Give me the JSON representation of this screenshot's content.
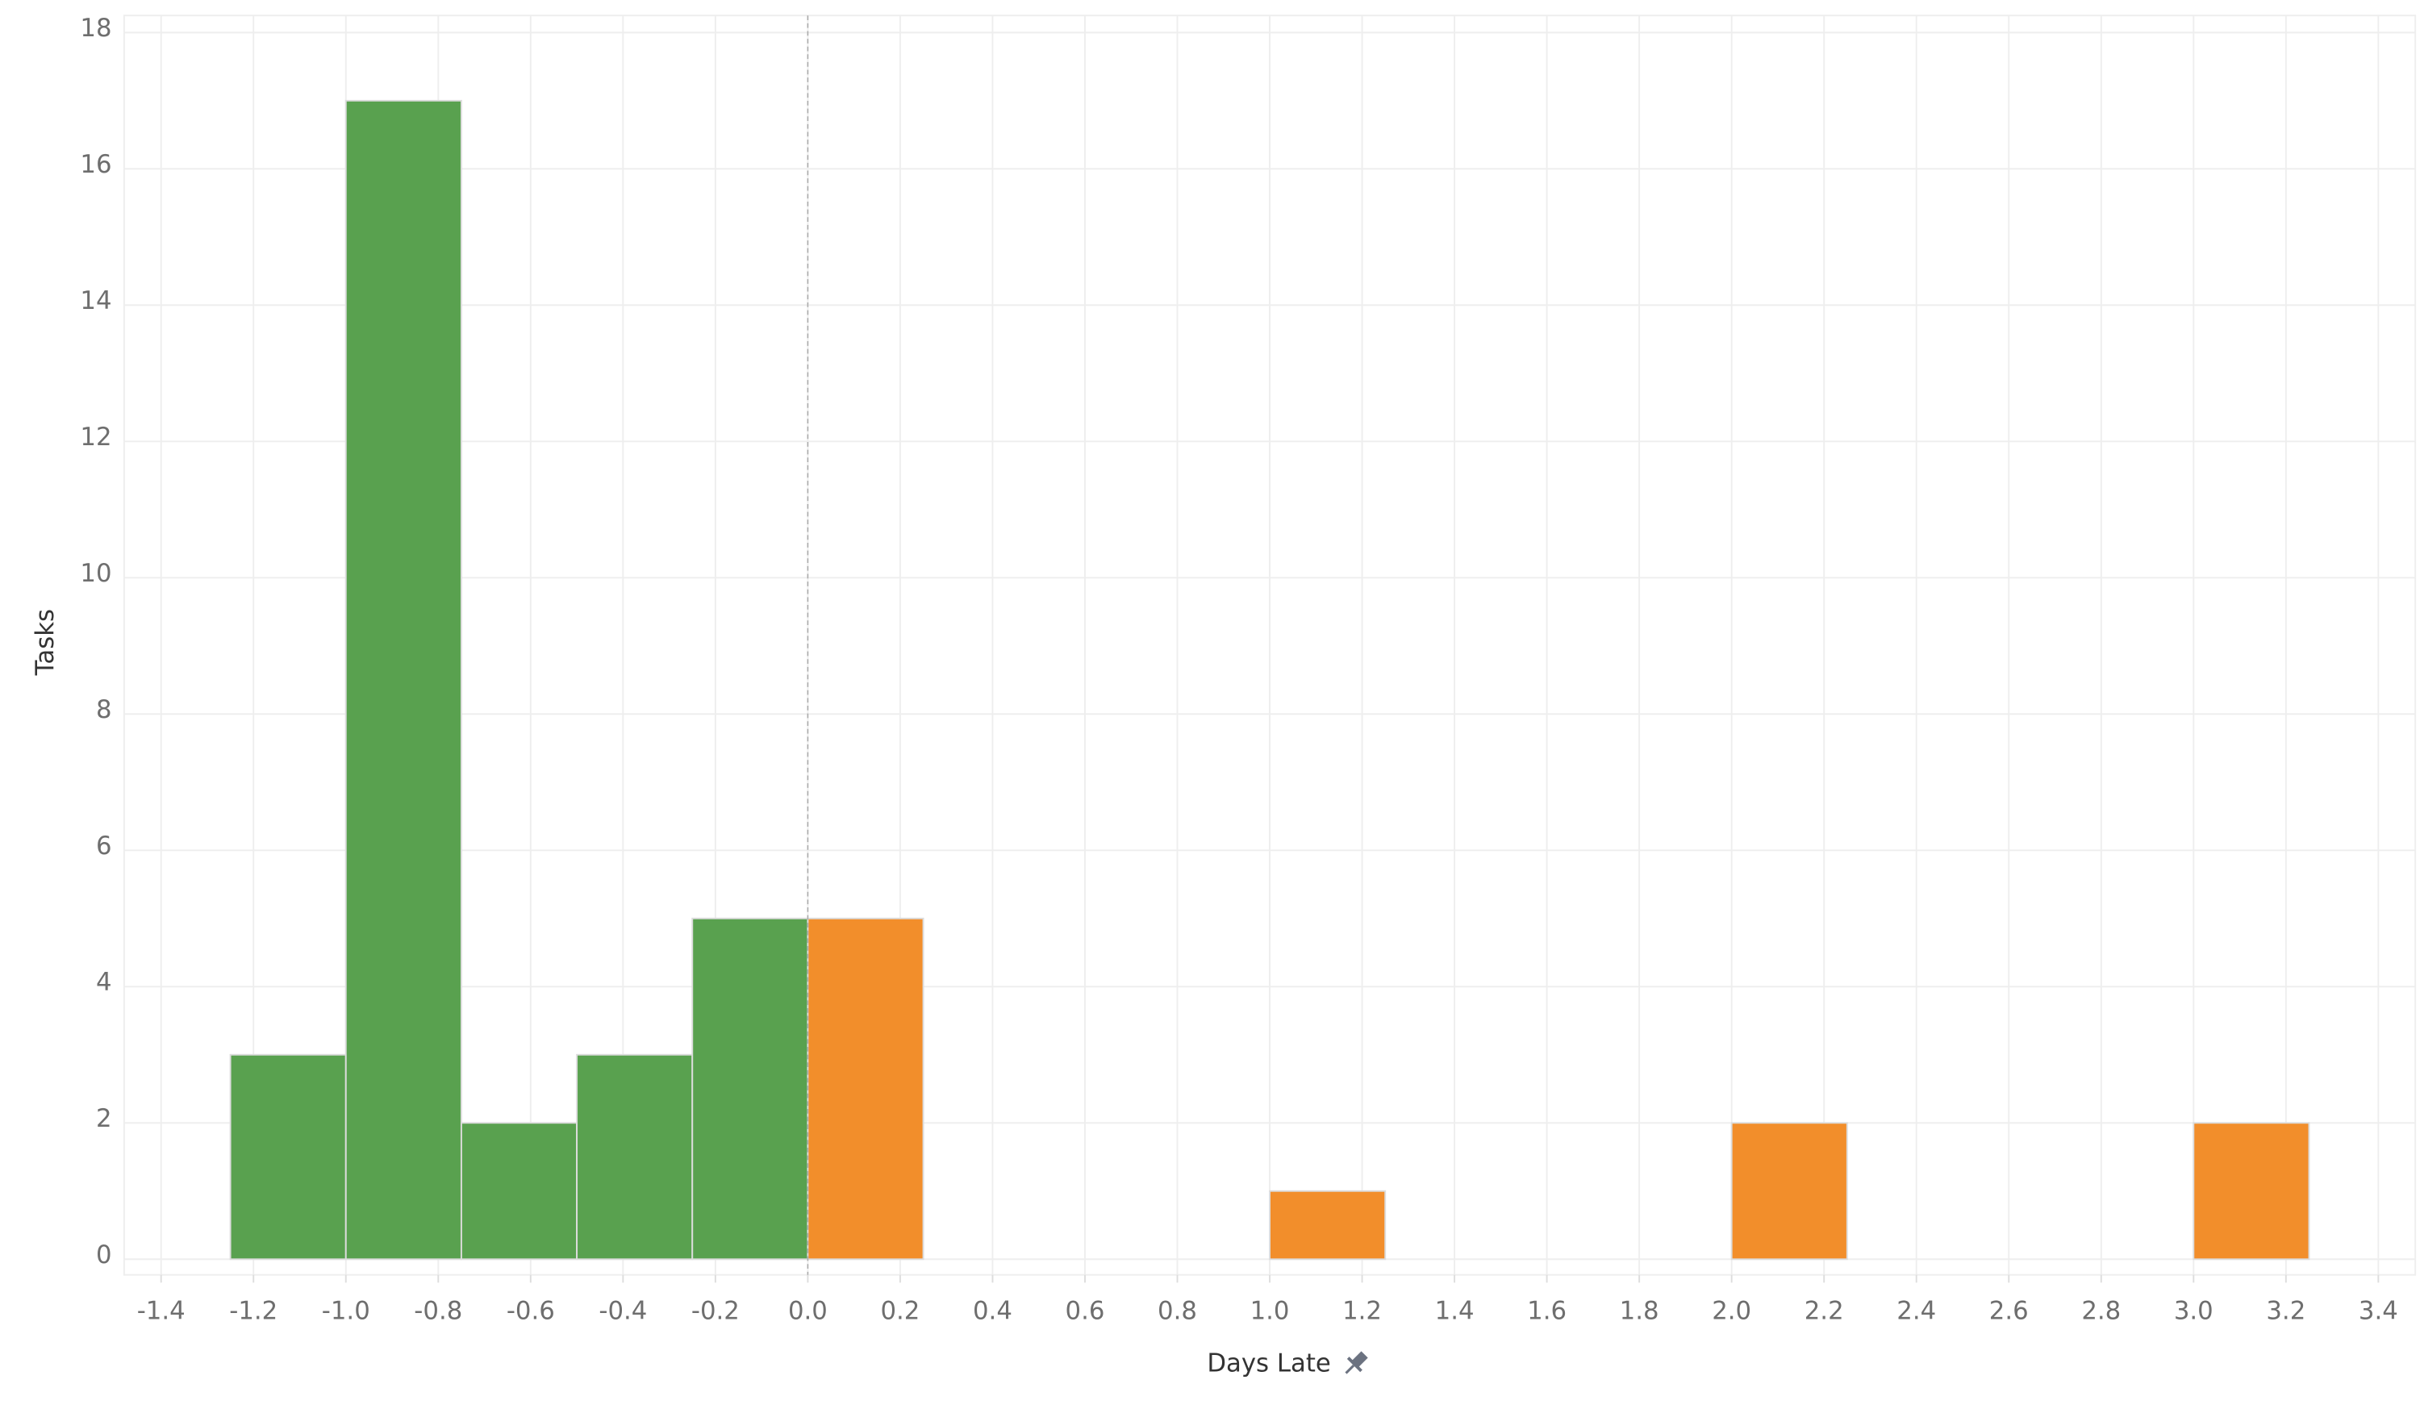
{
  "chart_data": {
    "type": "histogram",
    "x_label": "Days Late",
    "y_label": "Tasks",
    "bins": [
      -1.25,
      -1,
      -0.75,
      -0.5,
      -0.25,
      0,
      0.25,
      0.5,
      0.75,
      1,
      1.25,
      1.5,
      1.75,
      2,
      2.25,
      2.5,
      2.75,
      3,
      3.25
    ],
    "values": [
      3,
      17,
      2,
      3,
      5,
      5,
      0,
      0,
      0,
      1,
      0,
      0,
      0,
      2,
      0,
      0,
      0,
      2
    ],
    "colors": [
      "#59a14f",
      "#59a14f",
      "#59a14f",
      "#59a14f",
      "#59a14f",
      "#f28e2b",
      "#f28e2b",
      "#f28e2b",
      "#f28e2b",
      "#f28e2b",
      "#f28e2b",
      "#f28e2b",
      "#f28e2b",
      "#f28e2b",
      "#f28e2b",
      "#f28e2b",
      "#f28e2b",
      "#f28e2b"
    ],
    "xlim": [
      -1.48,
      3.48
    ],
    "xticks": [
      -1.4,
      -1.2,
      {
        "value": -1,
        "label": "-1.0"
      },
      -0.8,
      -0.6,
      -0.4,
      -0.2,
      {
        "value": 0,
        "label": "0.0"
      },
      0.2,
      0.4,
      0.6,
      0.8,
      {
        "value": 1,
        "label": "1.0"
      },
      1.2,
      1.4,
      1.6,
      1.8,
      {
        "value": 2,
        "label": "2.0"
      },
      2.2,
      2.4,
      2.6,
      2.8,
      {
        "value": 3,
        "label": "3.0"
      },
      3.2,
      3.4
    ],
    "ylim": [
      -0.23,
      18.25
    ],
    "yticks": [
      0,
      2,
      4,
      6,
      8,
      10,
      12,
      14,
      16,
      18
    ],
    "reference_line_x": 0,
    "grid": true
  }
}
